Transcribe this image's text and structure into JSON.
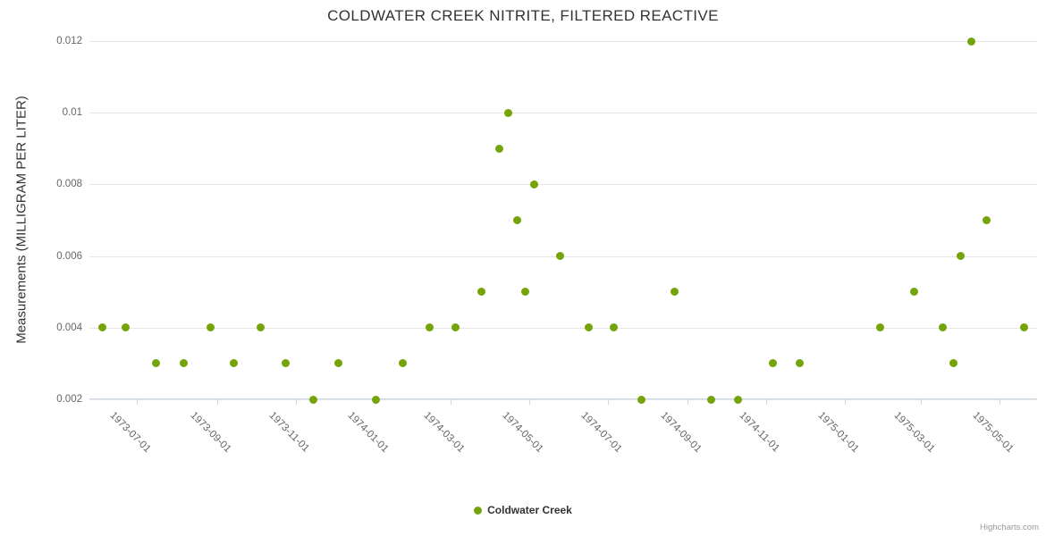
{
  "chart_data": {
    "type": "scatter",
    "title": "COLDWATER CREEK NITRITE, FILTERED REACTIVE",
    "xlabel": "",
    "ylabel": "Measurements (MILLIGRAM PER LITER)",
    "ylim": [
      0.002,
      0.012
    ],
    "y_ticks": [
      0.002,
      0.004,
      0.006,
      0.008,
      0.01,
      0.012
    ],
    "y_tick_labels": [
      "0.002",
      "0.004",
      "0.006",
      "0.008",
      "0.01",
      "0.012"
    ],
    "x_range": [
      "1973-05-25",
      "1975-05-30"
    ],
    "x_ticks": [
      "1973-07-01",
      "1973-09-01",
      "1973-11-01",
      "1974-01-01",
      "1974-03-01",
      "1974-05-01",
      "1974-07-01",
      "1974-09-01",
      "1974-11-01",
      "1975-01-01",
      "1975-03-01",
      "1975-05-01"
    ],
    "grid": "horizontal",
    "legend_position": "bottom-center",
    "series": [
      {
        "name": "Coldwater Creek",
        "color": "#74a40a",
        "points": [
          [
            "1973-06-04",
            0.004
          ],
          [
            "1973-06-22",
            0.004
          ],
          [
            "1973-07-16",
            0.003
          ],
          [
            "1973-08-06",
            0.003
          ],
          [
            "1973-08-27",
            0.004
          ],
          [
            "1973-09-14",
            0.003
          ],
          [
            "1973-10-05",
            0.004
          ],
          [
            "1973-10-24",
            0.003
          ],
          [
            "1973-11-15",
            0.002
          ],
          [
            "1973-12-04",
            0.003
          ],
          [
            "1974-01-02",
            0.002
          ],
          [
            "1974-01-23",
            0.003
          ],
          [
            "1974-02-13",
            0.004
          ],
          [
            "1974-03-05",
            0.004
          ],
          [
            "1974-03-25",
            0.005
          ],
          [
            "1974-04-08",
            0.009
          ],
          [
            "1974-04-15",
            0.01
          ],
          [
            "1974-04-22",
            0.007
          ],
          [
            "1974-04-28",
            0.005
          ],
          [
            "1974-05-05",
            0.008
          ],
          [
            "1974-05-25",
            0.006
          ],
          [
            "1974-06-16",
            0.004
          ],
          [
            "1974-07-06",
            0.004
          ],
          [
            "1974-07-27",
            0.002
          ],
          [
            "1974-08-22",
            0.005
          ],
          [
            "1974-09-19",
            0.002
          ],
          [
            "1974-10-10",
            0.002
          ],
          [
            "1974-11-06",
            0.003
          ],
          [
            "1974-11-27",
            0.003
          ],
          [
            "1975-01-28",
            0.004
          ],
          [
            "1975-02-24",
            0.005
          ],
          [
            "1975-03-18",
            0.004
          ],
          [
            "1975-03-26",
            0.003
          ],
          [
            "1975-04-01",
            0.006
          ],
          [
            "1975-04-09",
            0.012
          ],
          [
            "1975-04-21",
            0.007
          ],
          [
            "1975-05-20",
            0.004
          ]
        ]
      }
    ]
  },
  "credits": {
    "label": "Highcharts.com"
  }
}
